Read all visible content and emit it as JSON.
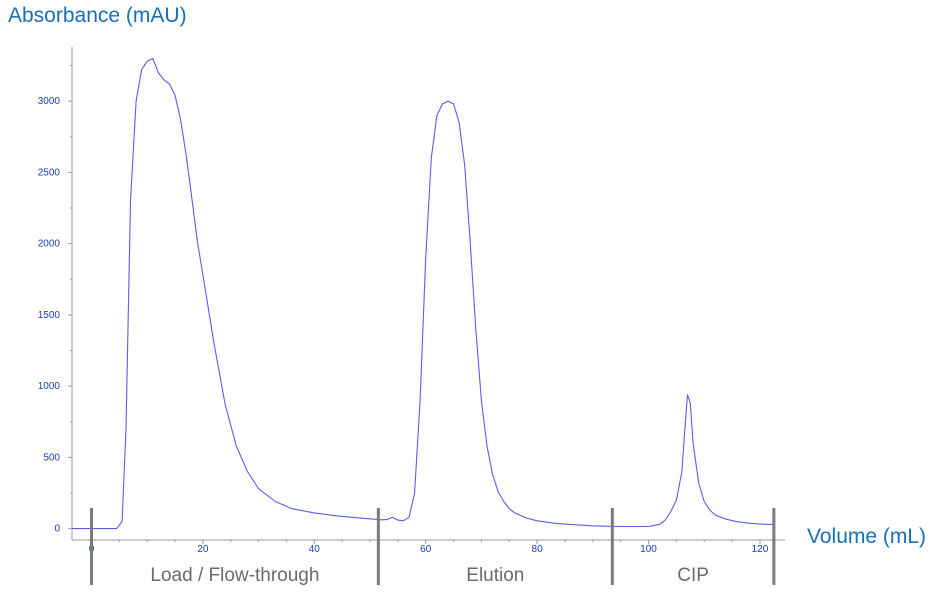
{
  "chart_data": {
    "type": "line",
    "ylabel": "Absorbance (mAU)",
    "xlabel": "Volume (mL)",
    "xlim": [
      -3.5,
      124.5
    ],
    "ylim": [
      -80,
      3380
    ],
    "x_ticks": [
      0,
      20,
      40,
      60,
      80,
      100,
      120
    ],
    "y_ticks": [
      0,
      500,
      1000,
      1500,
      2000,
      2500,
      3000
    ],
    "grid": false,
    "colors": {
      "line": "#5d5de6",
      "axis": "#9a9a9a",
      "label": "#1a6fb5",
      "tick": "#1c3fa8",
      "phase_text": "#6b6b6b",
      "phase_divider": "#7a7a7a"
    },
    "series": [
      {
        "x": [
          -3.5,
          0,
          2,
          4.5,
          5.5,
          6.2,
          7,
          8,
          9,
          10,
          11,
          12,
          13,
          14,
          15,
          16,
          17,
          18,
          19,
          20,
          22,
          24,
          26,
          28,
          30,
          33,
          36,
          40,
          44,
          48,
          51,
          52,
          53,
          54,
          55,
          56,
          57,
          58,
          59,
          60,
          61,
          62,
          63,
          64,
          65,
          66,
          67,
          68,
          69,
          70,
          71,
          72,
          73,
          74,
          75,
          76,
          78,
          80,
          83,
          86,
          90,
          93,
          96,
          100,
          102,
          103,
          104,
          105,
          106,
          106.5,
          107,
          107.5,
          108,
          109,
          110,
          111,
          112,
          114,
          116,
          118,
          120,
          121,
          122.5
        ],
        "y": [
          0,
          0,
          0,
          0,
          50,
          700,
          2300,
          3000,
          3220,
          3280,
          3300,
          3200,
          3150,
          3120,
          3040,
          2870,
          2620,
          2320,
          2020,
          1780,
          1300,
          870,
          580,
          400,
          280,
          190,
          140,
          110,
          90,
          75,
          65,
          62,
          63,
          80,
          60,
          55,
          80,
          250,
          900,
          1900,
          2600,
          2900,
          2980,
          3000,
          2980,
          2850,
          2550,
          2000,
          1400,
          900,
          580,
          380,
          260,
          190,
          140,
          110,
          75,
          55,
          38,
          28,
          20,
          16,
          15,
          15,
          30,
          60,
          120,
          200,
          400,
          680,
          940,
          880,
          600,
          320,
          190,
          130,
          95,
          65,
          48,
          38,
          32,
          30,
          28
        ]
      }
    ],
    "phases": [
      {
        "label": "Load / Flow-through",
        "start": 0,
        "end": 51.5
      },
      {
        "label": "Elution",
        "start": 51.5,
        "end": 93.5
      },
      {
        "label": "CIP",
        "start": 93.5,
        "end": 122.5
      }
    ]
  }
}
